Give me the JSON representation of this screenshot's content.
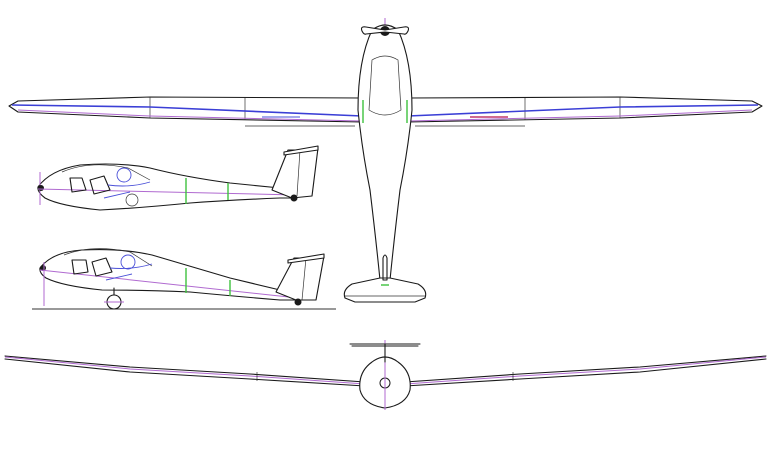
{
  "drawing": {
    "colors": {
      "outline": "#1a1a1a",
      "spar": "#3b3fd6",
      "centerline": "#b06ad0",
      "frames": "#3ec23e",
      "aileron_right": "#c0396b"
    }
  }
}
